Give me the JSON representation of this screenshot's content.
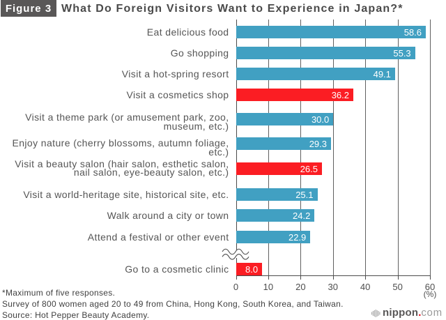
{
  "figure_label": "Figure 3",
  "title": "What Do Foreign Visitors Want to Experience in Japan?*",
  "chart_data": {
    "type": "bar",
    "orientation": "horizontal",
    "title": "What Do Foreign Visitors Want to Experience in Japan?*",
    "xlabel": "(%)",
    "xlim": [
      0,
      60
    ],
    "ticks": [
      "0",
      "10",
      "20",
      "30",
      "40",
      "50",
      "60"
    ],
    "grid": true,
    "colors": {
      "default_bar": "#41a0c2",
      "highlight_bar": "#fb1d23"
    },
    "axis_break_between": [
      "Attend a festival or other event",
      "Go to a cosmetic clinic"
    ],
    "items": [
      {
        "label_lines": [
          "Eat delicious food"
        ],
        "value": 58.6,
        "value_label": "58.6",
        "highlight": false
      },
      {
        "label_lines": [
          "Go shopping"
        ],
        "value": 55.3,
        "value_label": "55.3",
        "highlight": false
      },
      {
        "label_lines": [
          "Visit a hot-spring resort"
        ],
        "value": 49.1,
        "value_label": "49.1",
        "highlight": false
      },
      {
        "label_lines": [
          "Visit a cosmetics shop"
        ],
        "value": 36.2,
        "value_label": "36.2",
        "highlight": true
      },
      {
        "label_lines": [
          "Visit a theme park (or amusement park, zoo,",
          "museum, etc.)"
        ],
        "value": 30.0,
        "value_label": "30.0",
        "highlight": false
      },
      {
        "label_lines": [
          "Enjoy nature (cherry blossoms, autumn foliage,",
          "etc.)"
        ],
        "value": 29.3,
        "value_label": "29.3",
        "highlight": false
      },
      {
        "label_lines": [
          "Visit a beauty salon (hair salon, esthetic salon,",
          "nail salon, eye-beauty salon, etc.)"
        ],
        "value": 26.5,
        "value_label": "26.5",
        "highlight": true
      },
      {
        "label_lines": [
          "Visit a world-heritage site, historical site, etc."
        ],
        "value": 25.1,
        "value_label": "25.1",
        "highlight": false
      },
      {
        "label_lines": [
          "Walk around a city or town"
        ],
        "value": 24.2,
        "value_label": "24.2",
        "highlight": false
      },
      {
        "label_lines": [
          "Attend a festival or other event"
        ],
        "value": 22.9,
        "value_label": "22.9",
        "highlight": false
      },
      {
        "label_lines": [
          "Go to a cosmetic clinic"
        ],
        "value": 8.0,
        "value_label": "8.0",
        "highlight": true,
        "axis_break_before": true
      }
    ]
  },
  "footnotes": [
    "*Maximum of five responses.",
    "Survey of 800 women aged 20 to 49 from China, Hong Kong, South Korea, and Taiwan.",
    "Source: Hot Pepper Beauty Academy."
  ],
  "logo": {
    "brand": "nippon",
    "dot": ".",
    "tld": "com"
  }
}
